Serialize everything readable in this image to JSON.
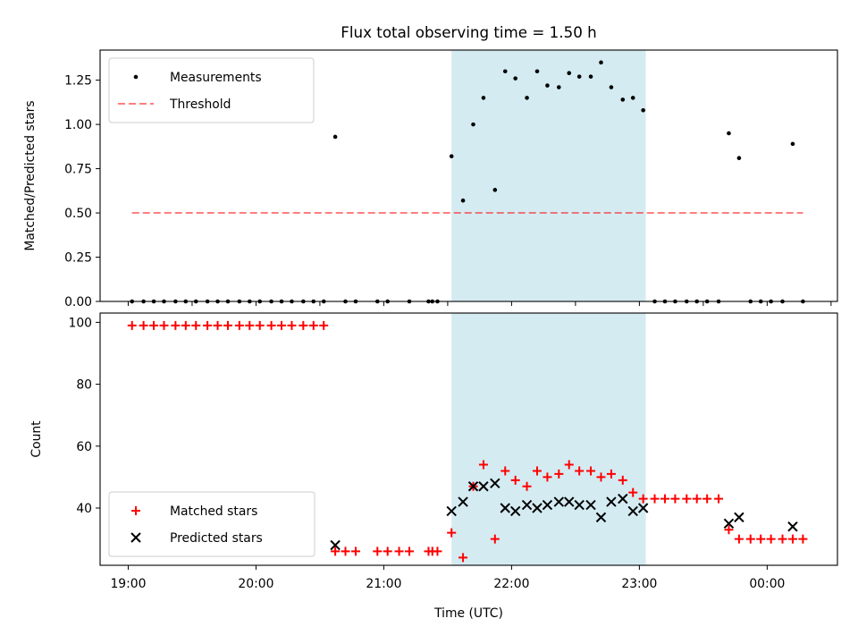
{
  "chart_data": {
    "title": "Flux total observing time = 1.50 h",
    "xlabel": "Time (UTC)",
    "x_tick_labels": [
      "19:00",
      "20:00",
      "21:00",
      "22:00",
      "23:00",
      "00:00"
    ],
    "x_ticks_hours": [
      19,
      20,
      21,
      22,
      23,
      24
    ],
    "xlim_hours": [
      18.78,
      24.55
    ],
    "highlight_span_hours": [
      21.53,
      23.05
    ],
    "span_color": "#add8e6",
    "panels": [
      {
        "type": "scatter",
        "ylabel": "Matched/Predicted stars",
        "ylim": [
          0,
          1.42
        ],
        "y_ticks": [
          0.0,
          0.25,
          0.5,
          0.75,
          1.0,
          1.25
        ],
        "y_tick_labels": [
          "0.00",
          "0.25",
          "0.50",
          "0.75",
          "1.00",
          "1.25"
        ],
        "legend": {
          "location": "upper-left",
          "entries": [
            "Measurements",
            "Threshold"
          ]
        },
        "threshold": {
          "name": "Threshold",
          "value": 0.5,
          "x_range_hours": [
            19.03,
            24.28
          ],
          "color": "#ff0000",
          "alpha": 0.5,
          "style": "dashed"
        },
        "series": [
          {
            "name": "Measurements",
            "marker": "dot",
            "color": "#000000",
            "x_hours": [
              19.03,
              19.12,
              19.2,
              19.28,
              19.37,
              19.45,
              19.53,
              19.62,
              19.7,
              19.78,
              19.87,
              19.95,
              20.03,
              20.12,
              20.2,
              20.28,
              20.37,
              20.45,
              20.53,
              20.62,
              20.7,
              20.78,
              20.95,
              21.03,
              21.2,
              21.35,
              21.38,
              21.42,
              21.53,
              21.62,
              21.7,
              21.78,
              21.87,
              21.95,
              22.03,
              22.12,
              22.2,
              22.28,
              22.37,
              22.45,
              22.53,
              22.62,
              22.7,
              22.78,
              22.87,
              22.95,
              23.03,
              23.12,
              23.2,
              23.28,
              23.37,
              23.45,
              23.53,
              23.62,
              23.7,
              23.78,
              23.87,
              23.95,
              24.03,
              24.12,
              24.2,
              24.28
            ],
            "y": [
              0,
              0,
              0,
              0,
              0,
              0,
              0,
              0,
              0,
              0,
              0,
              0,
              0,
              0,
              0,
              0,
              0,
              0,
              0,
              0.93,
              0,
              0,
              0,
              0,
              0,
              0,
              0,
              0,
              0.82,
              0.57,
              1.0,
              1.15,
              0.63,
              1.3,
              1.26,
              1.15,
              1.3,
              1.22,
              1.21,
              1.29,
              1.27,
              1.27,
              1.35,
              1.21,
              1.14,
              1.15,
              1.08,
              0,
              0,
              0,
              0,
              0,
              0,
              0,
              0.95,
              0.81,
              0,
              0,
              0,
              0,
              0.89,
              0
            ]
          }
        ]
      },
      {
        "type": "scatter",
        "ylabel": "Count",
        "ylim": [
          21.5,
          103
        ],
        "y_ticks": [
          40,
          60,
          80,
          100
        ],
        "y_tick_labels": [
          "40",
          "60",
          "80",
          "100"
        ],
        "legend": {
          "location": "lower-left",
          "entries": [
            "Matched stars",
            "Predicted stars"
          ]
        },
        "series": [
          {
            "name": "Matched stars",
            "marker": "plus",
            "color": "#ff0000",
            "x_hours": [
              19.03,
              19.12,
              19.2,
              19.28,
              19.37,
              19.45,
              19.53,
              19.62,
              19.7,
              19.78,
              19.87,
              19.95,
              20.03,
              20.12,
              20.2,
              20.28,
              20.37,
              20.45,
              20.53,
              20.62,
              20.7,
              20.78,
              20.95,
              21.03,
              21.12,
              21.2,
              21.35,
              21.38,
              21.42,
              21.53,
              21.62,
              21.7,
              21.78,
              21.87,
              21.95,
              22.03,
              22.12,
              22.2,
              22.28,
              22.37,
              22.45,
              22.53,
              22.62,
              22.7,
              22.78,
              22.87,
              22.95,
              23.03,
              23.12,
              23.2,
              23.28,
              23.37,
              23.45,
              23.53,
              23.62,
              23.7,
              23.78,
              23.87,
              23.95,
              24.03,
              24.12,
              24.2,
              24.28
            ],
            "y": [
              99,
              99,
              99,
              99,
              99,
              99,
              99,
              99,
              99,
              99,
              99,
              99,
              99,
              99,
              99,
              99,
              99,
              99,
              99,
              26,
              26,
              26,
              26,
              26,
              26,
              26,
              26,
              26,
              26,
              32,
              24,
              47,
              54,
              30,
              52,
              49,
              47,
              52,
              50,
              51,
              54,
              52,
              52,
              50,
              51,
              49,
              45,
              43,
              43,
              43,
              43,
              43,
              43,
              43,
              43,
              33,
              30,
              30,
              30,
              30,
              30,
              30,
              30
            ]
          },
          {
            "name": "Predicted stars",
            "marker": "x",
            "color": "#000000",
            "x_hours": [
              20.62,
              21.53,
              21.62,
              21.7,
              21.78,
              21.87,
              21.95,
              22.03,
              22.12,
              22.2,
              22.28,
              22.37,
              22.45,
              22.53,
              22.62,
              22.7,
              22.78,
              22.87,
              22.95,
              23.03,
              23.7,
              23.78,
              24.2
            ],
            "y": [
              28,
              39,
              42,
              47,
              47,
              48,
              40,
              39,
              41,
              40,
              41,
              42,
              42,
              41,
              41,
              37,
              42,
              43,
              39,
              40,
              35,
              37,
              34
            ]
          }
        ]
      }
    ]
  }
}
